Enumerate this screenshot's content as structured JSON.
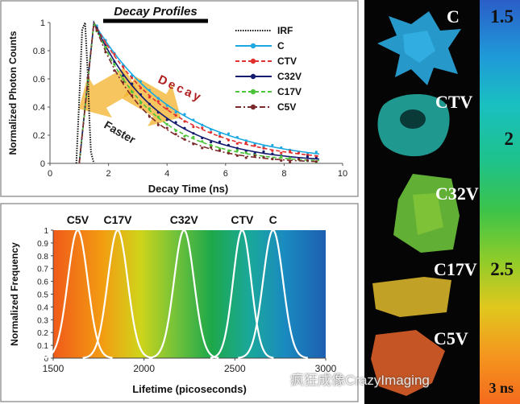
{
  "chart_data": [
    {
      "type": "line",
      "title": "Decay Profiles",
      "xlabel": "Decay Time (ns)",
      "ylabel": "Normalized Photon Counts",
      "xlim": [
        0,
        10
      ],
      "ylim": [
        0,
        1
      ],
      "xticks": [
        "0",
        "2",
        "4",
        "6",
        "8",
        "10"
      ],
      "yticks": [
        "0",
        "0.2",
        "0.4",
        "0.6",
        "0.8",
        "1"
      ],
      "annotations": [
        "Decay",
        "Faster"
      ],
      "series": [
        {
          "name": "IRF",
          "color": "#111111",
          "style": "dotted",
          "x": [
            0.9,
            1.0,
            1.1,
            1.2,
            1.3,
            1.35,
            1.4,
            1.5
          ],
          "y": [
            0,
            0.45,
            0.95,
            1.0,
            0.6,
            0.3,
            0.08,
            0
          ]
        },
        {
          "name": "C",
          "color": "#1ba8e0",
          "style": "solid",
          "marker": "circle",
          "lifetime": 2.85,
          "x": [
            1.0,
            1.2,
            1.5,
            2,
            3,
            4,
            5,
            6,
            7,
            8,
            9,
            9.2
          ],
          "y": [
            0,
            0.93,
            1.0,
            0.85,
            0.61,
            0.43,
            0.3,
            0.21,
            0.15,
            0.1,
            0.07,
            0.06
          ]
        },
        {
          "name": "CTV",
          "color": "#e03030",
          "style": "dashed",
          "marker": "triangle",
          "lifetime": 2.6,
          "x": [
            1.0,
            1.2,
            1.5,
            2,
            3,
            4,
            5,
            6,
            7,
            8,
            9,
            9.2
          ],
          "y": [
            0,
            0.93,
            1.0,
            0.83,
            0.57,
            0.39,
            0.26,
            0.18,
            0.12,
            0.08,
            0.06,
            0.05
          ]
        },
        {
          "name": "C32V",
          "color": "#141a6e",
          "style": "solid",
          "marker": "diamond",
          "lifetime": 2.2,
          "x": [
            1.0,
            1.2,
            1.5,
            2,
            3,
            4,
            5,
            6,
            7,
            8,
            9,
            9.2
          ],
          "y": [
            0,
            0.93,
            1.0,
            0.8,
            0.51,
            0.32,
            0.2,
            0.13,
            0.08,
            0.05,
            0.03,
            0.03
          ]
        },
        {
          "name": "C17V",
          "color": "#4cc43a",
          "style": "dashed",
          "marker": "star",
          "lifetime": 1.95,
          "x": [
            1.0,
            1.2,
            1.5,
            2,
            3,
            4,
            5,
            6,
            7,
            8,
            9,
            9.2
          ],
          "y": [
            0,
            0.93,
            1.0,
            0.77,
            0.46,
            0.28,
            0.16,
            0.1,
            0.06,
            0.03,
            0.02,
            0.02
          ]
        },
        {
          "name": "C5V",
          "color": "#7a2a2a",
          "style": "dashdot",
          "marker": "square",
          "lifetime": 1.75,
          "x": [
            1.0,
            1.2,
            1.5,
            2,
            3,
            4,
            5,
            6,
            7,
            8,
            9,
            9.2
          ],
          "y": [
            0,
            0.93,
            1.0,
            0.75,
            0.42,
            0.24,
            0.14,
            0.08,
            0.04,
            0.02,
            0.01,
            0.01
          ]
        }
      ]
    },
    {
      "type": "line",
      "title": "",
      "xlabel": "Lifetime (picoseconds)",
      "ylabel": "Normalized Frequency",
      "xlim": [
        1500,
        3000
      ],
      "ylim": [
        0,
        1
      ],
      "xticks": [
        "1500",
        "2000",
        "2500",
        "3000"
      ],
      "yticks": [
        "0",
        "0.1",
        "0.2",
        "0.3",
        "0.4",
        "0.5",
        "0.6",
        "0.7",
        "0.8",
        "0.9",
        "1"
      ],
      "series": [
        {
          "name": "C5V",
          "center": 1635,
          "width": 55
        },
        {
          "name": "C17V",
          "center": 1855,
          "width": 55
        },
        {
          "name": "C32V",
          "center": 2220,
          "width": 55
        },
        {
          "name": "CTV",
          "center": 2540,
          "width": 50
        },
        {
          "name": "C",
          "center": 2710,
          "width": 55
        }
      ]
    }
  ],
  "colorbar": {
    "labels": [
      "1.5",
      "2",
      "2.5",
      "3 ns"
    ],
    "values": [
      1.5,
      2,
      2.5,
      3
    ]
  },
  "cells": [
    {
      "label": "C",
      "color": "#2aa8e0"
    },
    {
      "label": "CTV",
      "color": "#2cc0b0"
    },
    {
      "label": "C32V",
      "color": "#6cc23a"
    },
    {
      "label": "C17V",
      "color": "#d6b22a"
    },
    {
      "label": "C5V",
      "color": "#e8642a"
    }
  ],
  "watermark": "疯狂成像CrazyImaging"
}
